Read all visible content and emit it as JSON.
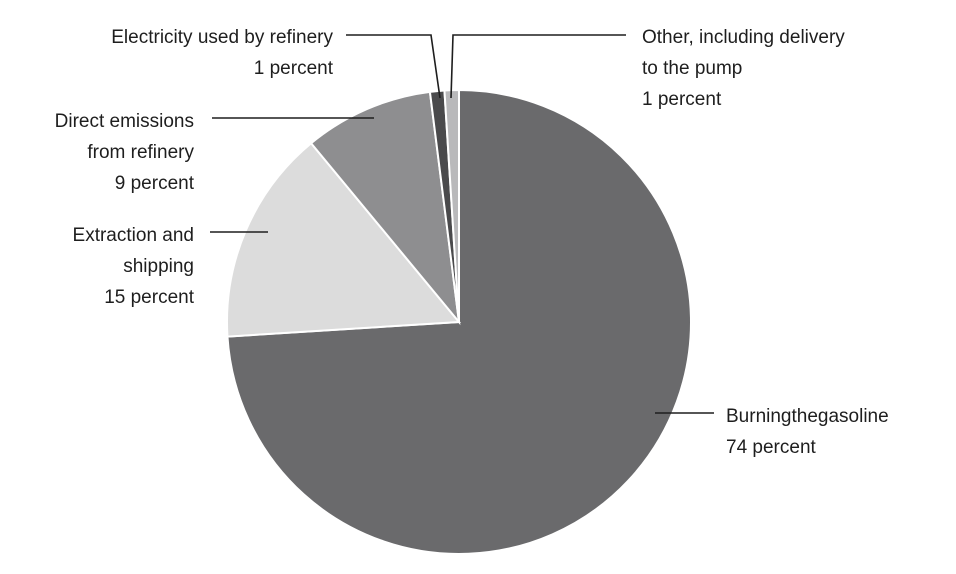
{
  "chart_data": {
    "type": "pie",
    "title": "",
    "slices": [
      {
        "label_lines": [
          "Burningthegasoline",
          "74 percent"
        ],
        "value": 74,
        "color": "#6a6a6c"
      },
      {
        "label_lines": [
          "Extraction and",
          "shipping",
          "15 percent"
        ],
        "value": 15,
        "color": "#dcdcdc"
      },
      {
        "label_lines": [
          "Direct emissions",
          "from refinery",
          "9 percent"
        ],
        "value": 9,
        "color": "#8e8e90"
      },
      {
        "label_lines": [
          "Electricity used by refinery",
          "1 percent"
        ],
        "value": 1,
        "color": "#4a4a4c"
      },
      {
        "label_lines": [
          "Other, including delivery",
          "to the pump",
          "1 percent"
        ],
        "value": 1,
        "color": "#b9b9bb"
      }
    ]
  }
}
